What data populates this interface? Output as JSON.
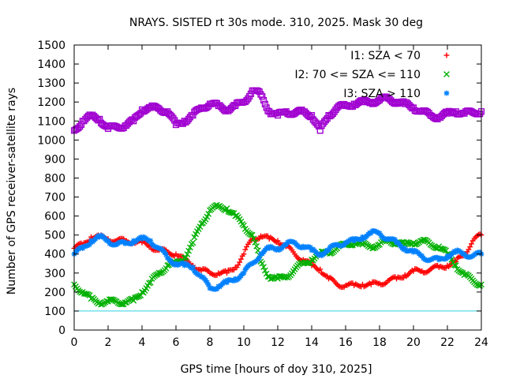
{
  "chart_data": {
    "type": "scatter",
    "title": "NRAYS. SISTED rt 30s mode. 310, 2025. Mask 30 deg",
    "xlabel": "GPS time [hours of doy 310, 2025]",
    "ylabel": "Number of GPS receiver-satellite rays",
    "xlim": [
      0,
      24
    ],
    "ylim": [
      0,
      1500
    ],
    "xticks": [
      0,
      2,
      4,
      6,
      8,
      10,
      12,
      14,
      16,
      18,
      20,
      22,
      24
    ],
    "yticks": [
      0,
      100,
      200,
      300,
      400,
      500,
      600,
      700,
      800,
      900,
      1000,
      1100,
      1200,
      1300,
      1400,
      1500
    ],
    "legend_position": "top-right",
    "series": [
      {
        "name": "I1: SZA < 70",
        "color": "#ff0000",
        "marker": "+",
        "x": [
          0,
          0.5,
          1,
          1.5,
          2,
          2.5,
          3,
          3.5,
          4,
          4.5,
          5,
          5.5,
          6,
          6.5,
          7,
          7.5,
          8,
          8.5,
          9,
          9.5,
          10,
          10.5,
          11,
          11.5,
          12,
          12.5,
          13,
          13.5,
          14,
          14.5,
          15,
          15.5,
          16,
          16.5,
          17,
          17.5,
          18,
          18.5,
          19,
          19.5,
          20,
          20.5,
          21,
          21.5,
          22,
          22.5,
          23,
          23.5,
          24
        ],
        "y": [
          430,
          450,
          490,
          490,
          480,
          470,
          470,
          465,
          460,
          440,
          420,
          410,
          400,
          370,
          340,
          315,
          300,
          300,
          300,
          330,
          400,
          480,
          495,
          480,
          470,
          440,
          400,
          370,
          340,
          320,
          270,
          240,
          235,
          235,
          240,
          240,
          245,
          260,
          270,
          290,
          310,
          310,
          320,
          330,
          340,
          360,
          400,
          470,
          500
        ]
      },
      {
        "name": "I2: 70 <= SZA <= 110",
        "color": "#00b000",
        "marker": "x",
        "x": [
          0,
          0.5,
          1,
          1.5,
          2,
          2.5,
          3,
          3.5,
          4,
          4.5,
          5,
          5.5,
          6,
          6.5,
          7,
          7.5,
          8,
          8.5,
          9,
          9.5,
          10,
          10.5,
          11,
          11.5,
          12,
          12.5,
          13,
          13.5,
          14,
          14.5,
          15,
          15.5,
          16,
          16.5,
          17,
          17.5,
          18,
          18.5,
          19,
          19.5,
          20,
          20.5,
          21,
          21.5,
          22,
          22.5,
          23,
          23.5,
          24
        ],
        "y": [
          240,
          200,
          165,
          145,
          150,
          150,
          145,
          155,
          200,
          250,
          300,
          340,
          350,
          380,
          460,
          560,
          630,
          650,
          640,
          600,
          550,
          500,
          360,
          280,
          270,
          280,
          320,
          350,
          370,
          400,
          410,
          430,
          450,
          460,
          450,
          440,
          450,
          470,
          460,
          450,
          460,
          470,
          450,
          440,
          400,
          340,
          290,
          260,
          240
        ]
      },
      {
        "name": "I3: SZA > 110",
        "color": "#0080ff",
        "marker": "*",
        "x": [
          0,
          0.5,
          1,
          1.5,
          2,
          2.5,
          3,
          3.5,
          4,
          4.5,
          5,
          5.5,
          6,
          6.5,
          7,
          7.5,
          8,
          8.5,
          9,
          9.5,
          10,
          10.5,
          11,
          11.5,
          12,
          12.5,
          13,
          13.5,
          14,
          14.5,
          15,
          15.5,
          16,
          16.5,
          17,
          17.5,
          18,
          18.5,
          19,
          19.5,
          20,
          20.5,
          21,
          21.5,
          22,
          22.5,
          23,
          23.5,
          24
        ],
        "y": [
          400,
          430,
          470,
          490,
          470,
          450,
          455,
          470,
          480,
          470,
          430,
          380,
          350,
          340,
          330,
          280,
          220,
          230,
          250,
          270,
          300,
          350,
          400,
          430,
          430,
          450,
          460,
          440,
          420,
          400,
          420,
          450,
          460,
          470,
          490,
          510,
          510,
          480,
          460,
          430,
          410,
          390,
          370,
          370,
          390,
          410,
          400,
          390,
          400
        ]
      },
      {
        "name": "",
        "color": "#a000d0",
        "marker": "square",
        "x": [
          0,
          0.5,
          1,
          1.5,
          2,
          2.5,
          3,
          3.5,
          4,
          4.5,
          5,
          5.5,
          6,
          6.5,
          7,
          7.5,
          8,
          8.5,
          9,
          9.5,
          10,
          10.5,
          11,
          11.5,
          12,
          12.5,
          13,
          13.5,
          14,
          14.5,
          15,
          15.5,
          16,
          16.5,
          17,
          17.5,
          18,
          18.5,
          19,
          19.5,
          20,
          20.5,
          21,
          21.5,
          22,
          22.5,
          23,
          23.5,
          24
        ],
        "y": [
          1050,
          1100,
          1125,
          1110,
          1060,
          1070,
          1075,
          1100,
          1160,
          1170,
          1165,
          1150,
          1080,
          1100,
          1130,
          1170,
          1190,
          1180,
          1160,
          1180,
          1200,
          1260,
          1240,
          1150,
          1130,
          1150,
          1140,
          1150,
          1130,
          1050,
          1130,
          1170,
          1180,
          1190,
          1200,
          1200,
          1210,
          1220,
          1200,
          1190,
          1170,
          1150,
          1130,
          1120,
          1140,
          1150,
          1140,
          1145,
          1150
        ]
      }
    ],
    "reference_line": {
      "y": 100,
      "color": "#30d0e0"
    }
  }
}
